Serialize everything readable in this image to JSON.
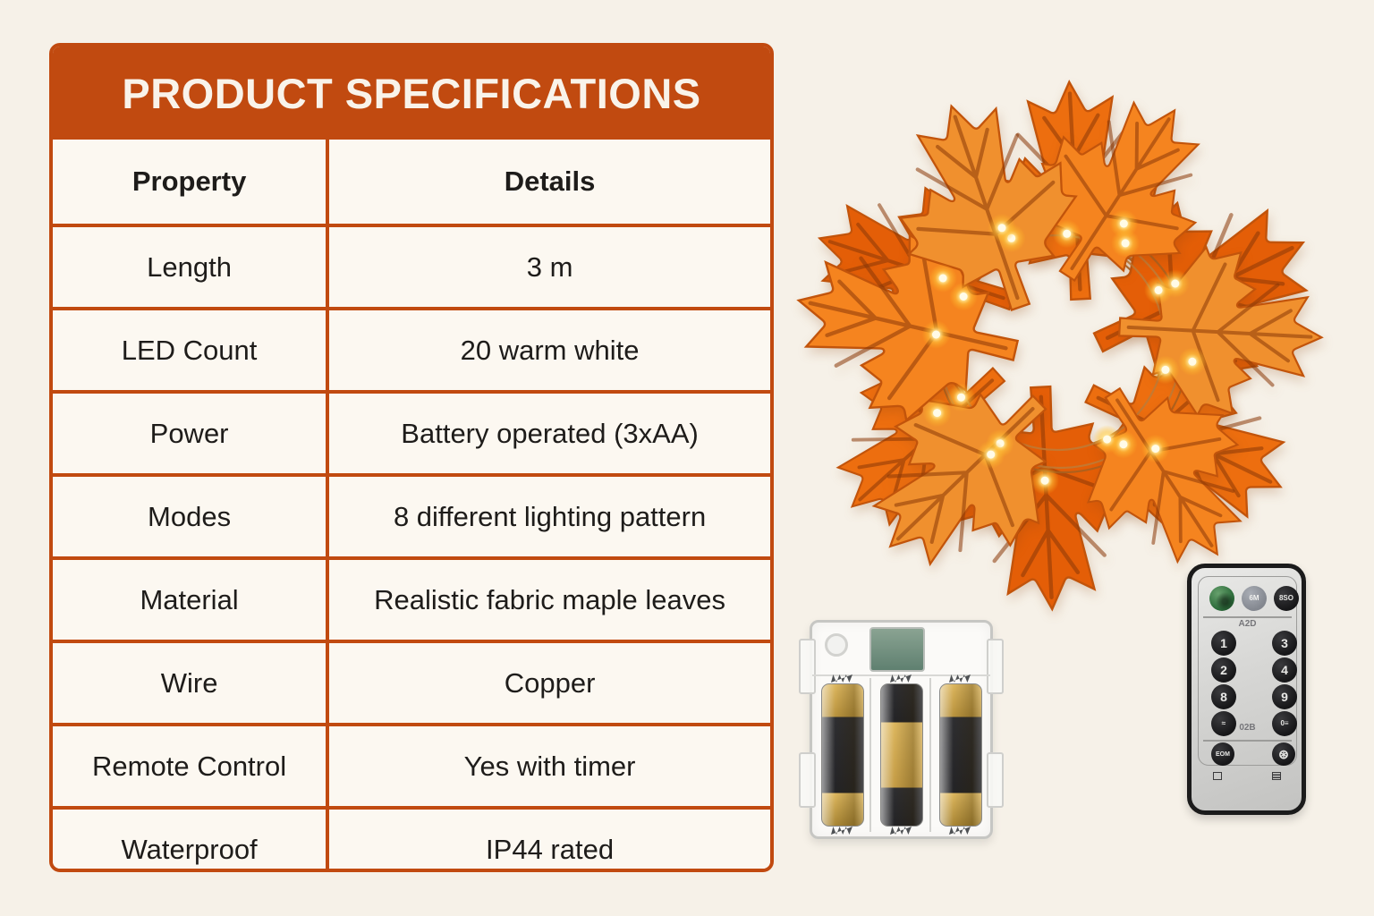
{
  "spec_table": {
    "title": "PRODUCT SPECIFICATIONS",
    "columns": [
      "Property",
      "Details"
    ],
    "rows": [
      {
        "property": "Length",
        "details": "3 m"
      },
      {
        "property": "LED Count",
        "details": "20 warm white"
      },
      {
        "property": "Power",
        "details": "Battery operated (3xAA)"
      },
      {
        "property": "Modes",
        "details": "8 different lighting pattern"
      },
      {
        "property": "Material",
        "details": "Realistic fabric maple leaves"
      },
      {
        "property": "Wire",
        "details": "Copper"
      },
      {
        "property": "Remote Control",
        "details": "Yes with timer"
      },
      {
        "property": "Waterproof",
        "details": "IP44 rated"
      }
    ]
  },
  "remote_control": {
    "mode_label": "A2D",
    "timer_label": "02B",
    "gray_button": "6M",
    "black_top_button": "8SO",
    "digits": [
      "1",
      "3",
      "2",
      "4",
      "8",
      "9"
    ],
    "wave_button": "≈",
    "dim_button": "0≡",
    "eom_button": "EOM",
    "flower_button": "⊛"
  },
  "icons": {
    "wreath": "maple-leaf-wreath-image",
    "battery_box": "battery-box-image",
    "remote": "remote-control-image",
    "power_switch": "power-switch",
    "screw": "screw-hole-icon"
  },
  "colors": {
    "accent": "#C14A10",
    "page_bg": "#F6F1E8",
    "cell_bg": "#FCF8F1",
    "leaf_palette": [
      "#ED6E0F",
      "#F5841F",
      "#E45E07",
      "#F0902E"
    ],
    "wire_copper": "#A8601F",
    "wire_copper_light": "#C07A35",
    "led_core": "#FFFBE8"
  }
}
